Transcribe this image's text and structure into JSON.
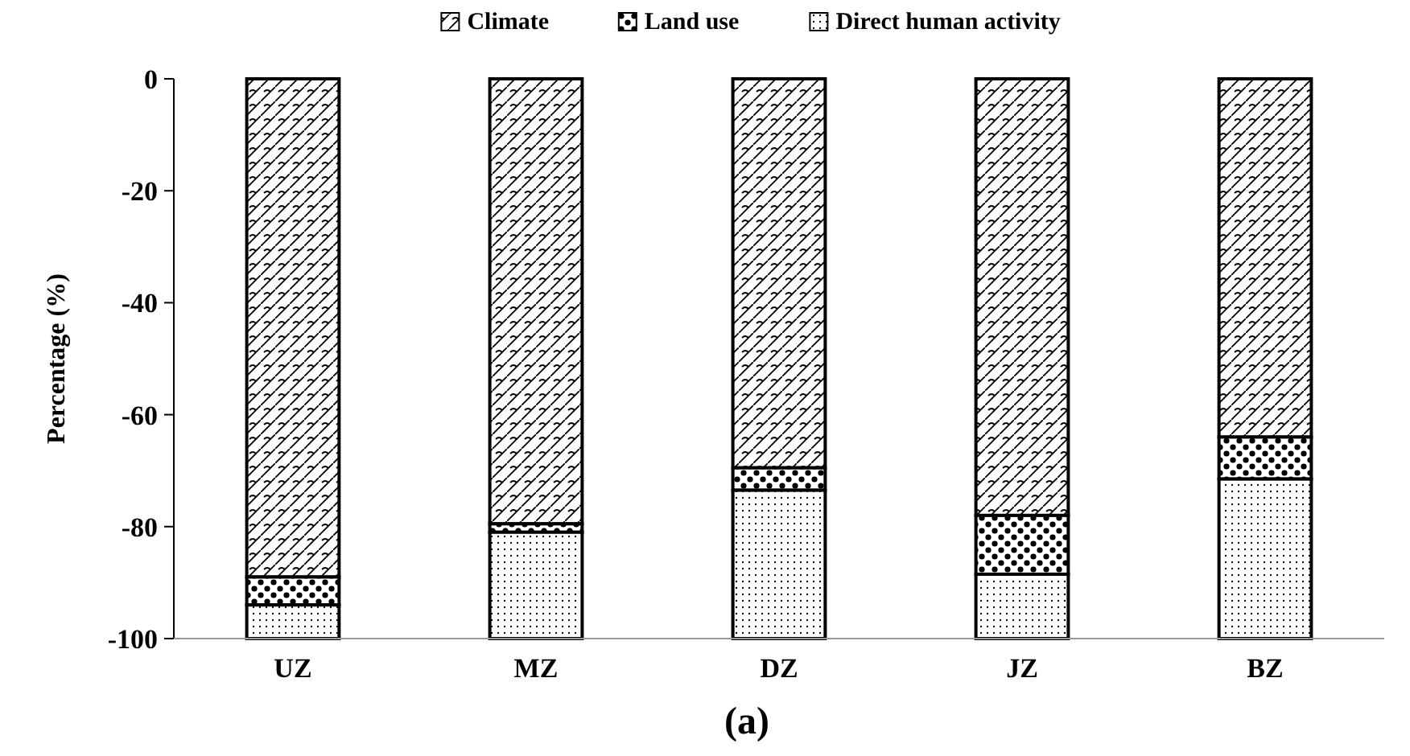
{
  "chart_data": {
    "type": "bar",
    "title": "(a)",
    "ylabel": "Percentage (%)",
    "categories": [
      "UZ",
      "MZ",
      "DZ",
      "JZ",
      "BZ"
    ],
    "stacked": true,
    "ylim": [
      -100,
      0
    ],
    "yticks": [
      -100,
      -80,
      -60,
      -40,
      -20,
      0
    ],
    "grid": false,
    "legend": "top",
    "series": [
      {
        "name": "Climate",
        "color": "#000000",
        "values": [
          -89,
          -79.5,
          -69.5,
          -78,
          -64
        ]
      },
      {
        "name": "Land use",
        "color": "#000000",
        "values": [
          -5,
          -1.5,
          -4,
          -10.5,
          -7.5
        ]
      },
      {
        "name": "Direct human activity",
        "color": "#000000",
        "values": [
          -6,
          -19,
          -26.5,
          -11.5,
          -28.5
        ]
      }
    ]
  }
}
